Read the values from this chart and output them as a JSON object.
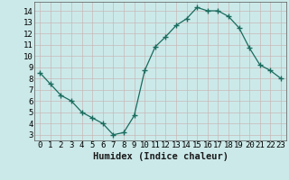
{
  "x": [
    0,
    1,
    2,
    3,
    4,
    5,
    6,
    7,
    8,
    9,
    10,
    11,
    12,
    13,
    14,
    15,
    16,
    17,
    18,
    19,
    20,
    21,
    22,
    23
  ],
  "y": [
    8.5,
    7.5,
    6.5,
    6.0,
    5.0,
    4.5,
    4.0,
    3.0,
    3.2,
    4.7,
    8.7,
    10.8,
    11.7,
    12.7,
    13.3,
    14.3,
    14.0,
    14.0,
    13.5,
    12.5,
    10.7,
    9.2,
    8.7,
    8.0
  ],
  "line_color": "#1a6b5e",
  "marker": "+",
  "marker_size": 4,
  "background_color": "#cce9e9",
  "grid_color": "#c8b8b8",
  "xlabel": "Humidex (Indice chaleur)",
  "xlim": [
    -0.5,
    23.5
  ],
  "ylim": [
    2.5,
    14.8
  ],
  "xticks": [
    0,
    1,
    2,
    3,
    4,
    5,
    6,
    7,
    8,
    9,
    10,
    11,
    12,
    13,
    14,
    15,
    16,
    17,
    18,
    19,
    20,
    21,
    22,
    23
  ],
  "yticks": [
    3,
    4,
    5,
    6,
    7,
    8,
    9,
    10,
    11,
    12,
    13,
    14
  ],
  "tick_fontsize": 6.5,
  "label_fontsize": 7.5
}
